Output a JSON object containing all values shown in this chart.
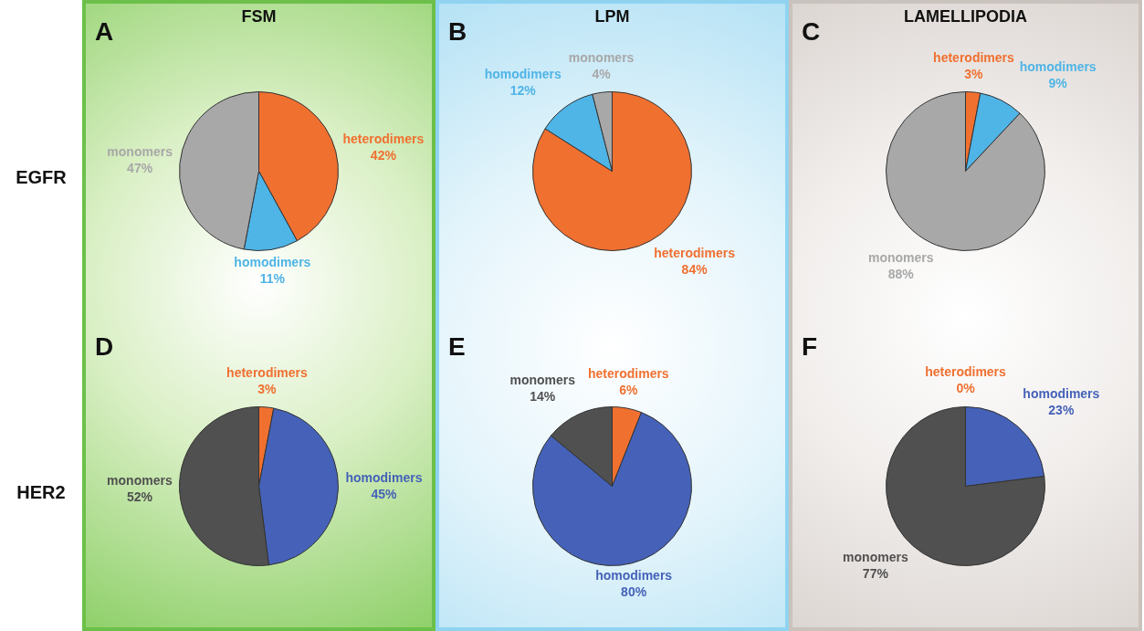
{
  "chart_data": [
    {
      "type": "pie",
      "title": "A",
      "subtitle": "FSM",
      "ylabel": "EGFR",
      "categories": [
        "heterodimers",
        "homodimers",
        "monomers"
      ],
      "values": [
        42,
        11,
        47
      ],
      "colors": [
        "#f07030",
        "#4fb4e6",
        "#a8a8a8"
      ],
      "value_labels": [
        "42%",
        "11%",
        "47%"
      ]
    },
    {
      "type": "pie",
      "title": "B",
      "subtitle": "LPM",
      "categories": [
        "heterodimers",
        "homodimers",
        "monomers"
      ],
      "values": [
        84,
        12,
        4
      ],
      "colors": [
        "#f07030",
        "#4fb4e6",
        "#a8a8a8"
      ],
      "value_labels": [
        "84%",
        "12%",
        "4%"
      ]
    },
    {
      "type": "pie",
      "title": "C",
      "subtitle": "LAMELLIPODIA",
      "categories": [
        "heterodimers",
        "homodimers",
        "monomers"
      ],
      "values": [
        3,
        9,
        88
      ],
      "colors": [
        "#f07030",
        "#4fb4e6",
        "#a8a8a8"
      ],
      "value_labels": [
        "3%",
        "9%",
        "88%"
      ]
    },
    {
      "type": "pie",
      "title": "D",
      "ylabel": "HER2",
      "categories": [
        "heterodimers",
        "homodimers",
        "monomers"
      ],
      "values": [
        3,
        45,
        52
      ],
      "colors": [
        "#f07030",
        "#4562b8",
        "#505050"
      ],
      "value_labels": [
        "3%",
        "45%",
        "52%"
      ]
    },
    {
      "type": "pie",
      "title": "E",
      "categories": [
        "heterodimers",
        "homodimers",
        "monomers"
      ],
      "values": [
        6,
        80,
        14
      ],
      "colors": [
        "#f07030",
        "#4562b8",
        "#505050"
      ],
      "value_labels": [
        "6%",
        "80%",
        "14%"
      ]
    },
    {
      "type": "pie",
      "title": "F",
      "categories": [
        "heterodimers",
        "homodimers",
        "monomers"
      ],
      "values": [
        0,
        23,
        77
      ],
      "colors": [
        "#f07030",
        "#4562b8",
        "#505050"
      ],
      "value_labels": [
        "0%",
        "23%",
        "77%"
      ]
    }
  ]
}
